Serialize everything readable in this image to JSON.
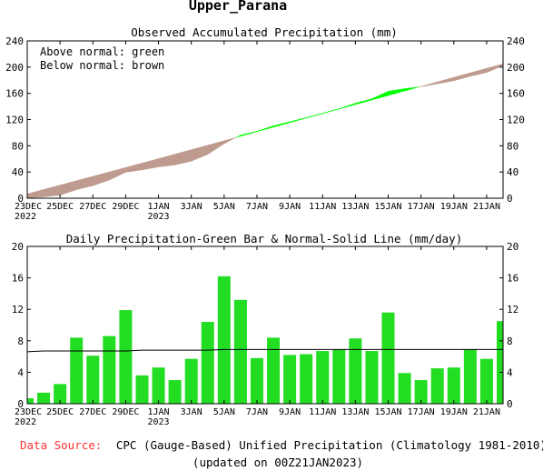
{
  "title": "Upper_Parana",
  "footer": {
    "source_label": "Data Source:",
    "source_text": "CPC (Gauge-Based) Unified Precipitation (Climatology 1981-2010)",
    "updated": "(updated on 00Z21JAN2023)"
  },
  "colors": {
    "above_normal": "#00ff00",
    "below_normal": "#bf9a8f",
    "daily_bar": "#22dd22",
    "source_label": "#ff3333"
  },
  "chart_data": [
    {
      "type": "area",
      "title": "Observed Accumulated Precipitation (mm)",
      "legend_notes": [
        "Above normal: green",
        "Below normal: brown"
      ],
      "ylim": [
        0,
        240
      ],
      "yticks": [
        0,
        40,
        80,
        120,
        160,
        200,
        240
      ],
      "xticks": [
        {
          "label": "23DEC",
          "sub": "2022"
        },
        {
          "label": "25DEC",
          "sub": ""
        },
        {
          "label": "27DEC",
          "sub": ""
        },
        {
          "label": "29DEC",
          "sub": ""
        },
        {
          "label": "1JAN",
          "sub": "2023"
        },
        {
          "label": "3JAN",
          "sub": ""
        },
        {
          "label": "5JAN",
          "sub": ""
        },
        {
          "label": "7JAN",
          "sub": ""
        },
        {
          "label": "9JAN",
          "sub": ""
        },
        {
          "label": "11JAN",
          "sub": ""
        },
        {
          "label": "13JAN",
          "sub": ""
        },
        {
          "label": "15JAN",
          "sub": ""
        },
        {
          "label": "17JAN",
          "sub": ""
        },
        {
          "label": "19JAN",
          "sub": ""
        },
        {
          "label": "21JAN",
          "sub": ""
        }
      ],
      "x": [
        "23DEC",
        "24DEC",
        "25DEC",
        "26DEC",
        "27DEC",
        "28DEC",
        "29DEC",
        "30DEC",
        "31DEC",
        "1JAN",
        "2JAN",
        "3JAN",
        "4JAN",
        "5JAN",
        "6JAN",
        "7JAN",
        "8JAN",
        "9JAN",
        "10JAN",
        "11JAN",
        "12JAN",
        "13JAN",
        "14JAN",
        "15JAN",
        "16JAN",
        "17JAN",
        "18JAN",
        "19JAN",
        "20JAN",
        "21JAN"
      ],
      "series": [
        {
          "name": "Observed",
          "values": [
            0.7,
            2.1,
            4.6,
            13.0,
            19.1,
            27.7,
            39.6,
            43.2,
            47.8,
            50.8,
            56.5,
            66.9,
            83.1,
            96.3,
            102.1,
            110.5,
            116.7,
            123.0,
            129.7,
            136.6,
            144.9,
            151.6,
            163.2,
            167.1,
            170.1,
            174.6,
            179.2,
            186.1,
            191.8,
            202.3
          ]
        },
        {
          "name": "Normal",
          "values": [
            6.6,
            13.3,
            20.0,
            26.7,
            33.4,
            40.1,
            46.8,
            53.6,
            60.4,
            67.2,
            74.0,
            80.8,
            87.7,
            94.6,
            101.5,
            108.4,
            115.3,
            122.2,
            129.1,
            136.0,
            142.9,
            149.8,
            156.7,
            163.6,
            170.5,
            177.5,
            184.4,
            191.3,
            198.2,
            205.1
          ]
        }
      ]
    },
    {
      "type": "bar",
      "title": "Daily Precipitation-Green Bar & Normal-Solid Line (mm/day)",
      "ylim": [
        0,
        20
      ],
      "yticks": [
        0,
        4,
        8,
        12,
        16,
        20
      ],
      "xticks": [
        {
          "label": "23DEC",
          "sub": "2022"
        },
        {
          "label": "25DEC",
          "sub": ""
        },
        {
          "label": "27DEC",
          "sub": ""
        },
        {
          "label": "29DEC",
          "sub": ""
        },
        {
          "label": "1JAN",
          "sub": "2023"
        },
        {
          "label": "3JAN",
          "sub": ""
        },
        {
          "label": "5JAN",
          "sub": ""
        },
        {
          "label": "7JAN",
          "sub": ""
        },
        {
          "label": "9JAN",
          "sub": ""
        },
        {
          "label": "11JAN",
          "sub": ""
        },
        {
          "label": "13JAN",
          "sub": ""
        },
        {
          "label": "15JAN",
          "sub": ""
        },
        {
          "label": "17JAN",
          "sub": ""
        },
        {
          "label": "19JAN",
          "sub": ""
        },
        {
          "label": "21JAN",
          "sub": ""
        }
      ],
      "categories": [
        "23DEC",
        "24DEC",
        "25DEC",
        "26DEC",
        "27DEC",
        "28DEC",
        "29DEC",
        "30DEC",
        "31DEC",
        "1JAN",
        "2JAN",
        "3JAN",
        "4JAN",
        "5JAN",
        "6JAN",
        "7JAN",
        "8JAN",
        "9JAN",
        "10JAN",
        "11JAN",
        "12JAN",
        "13JAN",
        "14JAN",
        "15JAN",
        "16JAN",
        "17JAN",
        "18JAN",
        "19JAN",
        "20JAN",
        "21JAN"
      ],
      "series": [
        {
          "name": "Daily Precipitation",
          "values": [
            0.7,
            1.4,
            2.5,
            8.4,
            6.1,
            8.6,
            11.9,
            3.6,
            4.6,
            3.0,
            5.7,
            10.4,
            16.2,
            13.2,
            5.8,
            8.4,
            6.2,
            6.3,
            6.7,
            6.9,
            8.3,
            6.7,
            11.6,
            3.9,
            3.0,
            4.5,
            4.6,
            6.9,
            5.7,
            10.5
          ]
        },
        {
          "name": "Normal",
          "values": [
            6.6,
            6.7,
            6.7,
            6.7,
            6.7,
            6.7,
            6.7,
            6.8,
            6.8,
            6.8,
            6.8,
            6.8,
            6.9,
            6.9,
            6.9,
            6.9,
            6.9,
            6.9,
            6.9,
            6.9,
            6.9,
            6.9,
            6.9,
            6.9,
            6.9,
            6.9,
            6.9,
            6.9,
            6.9,
            6.9
          ]
        }
      ]
    }
  ]
}
